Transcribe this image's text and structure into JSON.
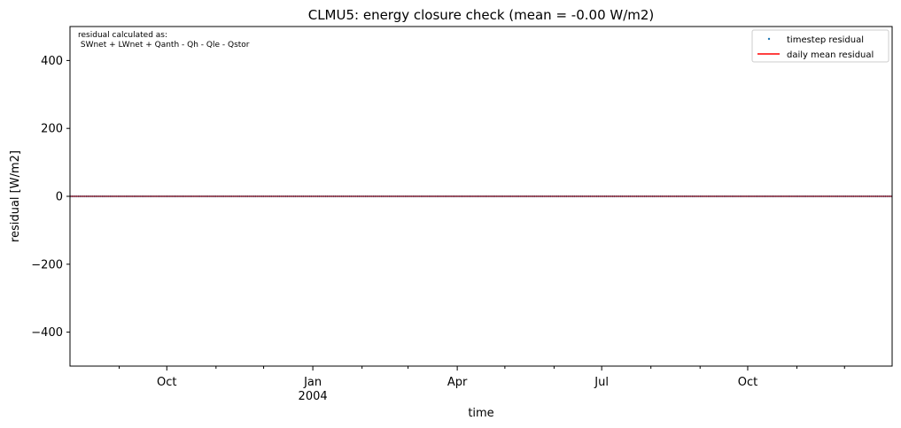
{
  "chart_data": {
    "type": "line",
    "title": "CLMU5: energy closure check (mean = -0.00 W/m2)",
    "xlabel": "time",
    "ylabel": "residual [W/m2]",
    "ylim": [
      -500,
      500
    ],
    "xlim": [
      "2003-08-01",
      "2004-12-31"
    ],
    "yticks": [
      -400,
      -200,
      0,
      200,
      400
    ],
    "ytick_labels": [
      "−400",
      "−200",
      "0",
      "200",
      "400"
    ],
    "xticks": [
      {
        "date": "2003-10-01",
        "label": "Oct",
        "sublabel": ""
      },
      {
        "date": "2004-01-01",
        "label": "Jan",
        "sublabel": "2004"
      },
      {
        "date": "2004-04-01",
        "label": "Apr",
        "sublabel": ""
      },
      {
        "date": "2004-07-01",
        "label": "Jul",
        "sublabel": ""
      },
      {
        "date": "2004-10-01",
        "label": "Oct",
        "sublabel": ""
      }
    ],
    "minor_ticks": [
      "2003-09-01",
      "2003-11-01",
      "2003-12-01",
      "2004-02-01",
      "2004-03-01",
      "2004-05-01",
      "2004-06-01",
      "2004-08-01",
      "2004-09-01",
      "2004-11-01",
      "2004-12-01"
    ],
    "annotation": {
      "line1": "residual calculated as:",
      "line2": " SWnet + LWnet + Qanth - Qh - Qle - Qstor"
    },
    "legend": {
      "position": "top-right",
      "entries": [
        "timestep residual",
        "daily mean residual"
      ]
    },
    "series": [
      {
        "name": "timestep residual",
        "style": "markers",
        "color": "#1f77b4",
        "x": [
          "2003-08-01",
          "2004-12-31"
        ],
        "y": [
          0,
          0
        ]
      },
      {
        "name": "daily mean residual",
        "style": "line",
        "color": "#ff0000",
        "x": [
          "2003-08-01",
          "2004-12-31"
        ],
        "y": [
          0,
          0
        ]
      }
    ],
    "grid": false
  }
}
